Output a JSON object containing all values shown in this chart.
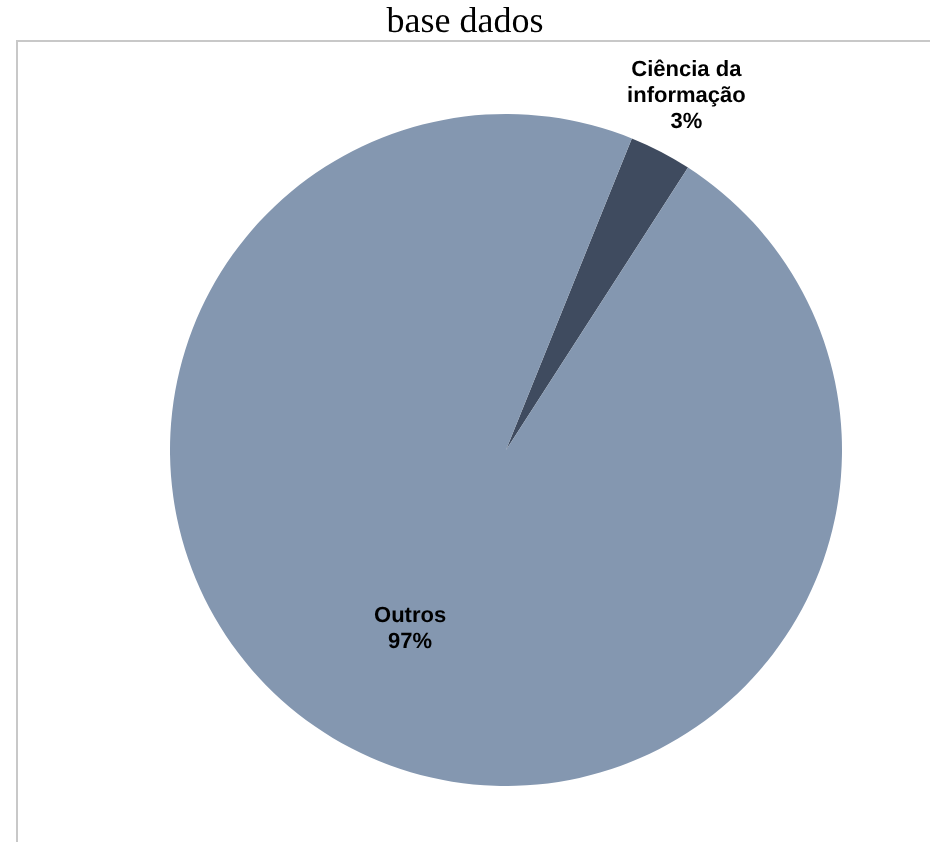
{
  "chart_data": {
    "type": "pie",
    "title": "base dados",
    "categories": [
      "Ciência da informação",
      "Outros"
    ],
    "values": [
      3,
      97
    ],
    "colors": [
      "#3f4b5f",
      "#8497b0"
    ],
    "value_labels": [
      "3%",
      "97%"
    ],
    "legend": false
  }
}
